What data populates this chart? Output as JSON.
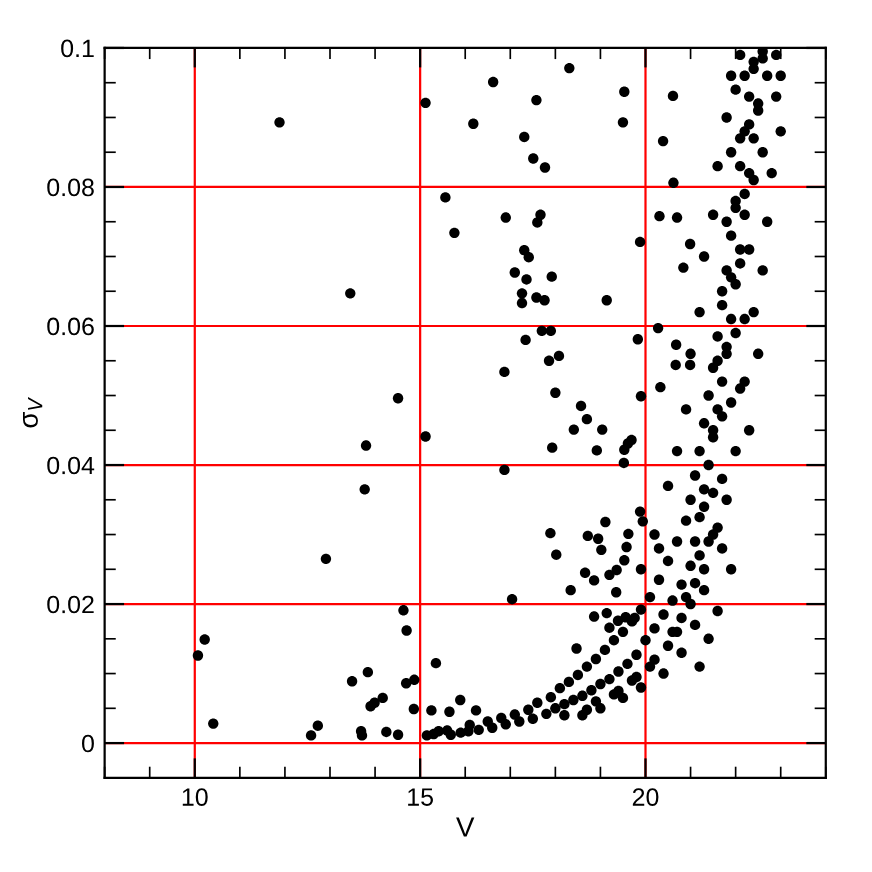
{
  "chart_data": {
    "type": "scatter",
    "xlabel": "V",
    "ylabel": "σ$_{V}$",
    "xlim": [
      8,
      24
    ],
    "ylim": [
      -0.005,
      0.1
    ],
    "xticks": [
      10,
      15,
      20
    ],
    "yticks": [
      0,
      0.02,
      0.04,
      0.06,
      0.08,
      0.1
    ],
    "grid": true,
    "marker": "circle",
    "series": [
      {
        "color": "#000000",
        "x": [
          11.88,
          15.12,
          16.18,
          15.56,
          15.76,
          13.45,
          14.51,
          15.12,
          13.8,
          13.77,
          12.91,
          14.63,
          14.7,
          10.22,
          10.07,
          15.35,
          13.84,
          13.49,
          14.87,
          14.69,
          14.17,
          13.99,
          13.9,
          14.86,
          15.25,
          15.89,
          15.65,
          10.41,
          12.73,
          12.58,
          13.69,
          13.71,
          14.25,
          14.51,
          15.15,
          15.41,
          15.68,
          16.07,
          16.24,
          16.62,
          18.31,
          17.58,
          19.53,
          20.61,
          19.5,
          17.31,
          17.51,
          17.77,
          20.39,
          20.62,
          16.9,
          17.6,
          17.67,
          20.31,
          20.7,
          19.88,
          20.99,
          17.31,
          17.41,
          17.1,
          17.36,
          17.92,
          20.84,
          17.26,
          17.26,
          17.58,
          17.76,
          19.14,
          17.7,
          17.9,
          17.34,
          19.83,
          20.28,
          20.68,
          16.87,
          17.86,
          18.08,
          18.0,
          19.9,
          20.33,
          20.67,
          20.99,
          18.57,
          18.7,
          18.41,
          19.04,
          17.93,
          18.92,
          16.87,
          19.53,
          19.61,
          19.69,
          19.52,
          17.89,
          18.02,
          18.72,
          18.95,
          19.11,
          19.02,
          18.34,
          18.66,
          17.04,
          18.86,
          19.2,
          19.36,
          19.53,
          19.58,
          19.62,
          19.88,
          19.94,
          18.86,
          19.14,
          19.2,
          19.39,
          19.56,
          19.76,
          19.35,
          18.47,
          15.3,
          15.6,
          15.9,
          16.1,
          16.3,
          16.5,
          16.6,
          16.8,
          16.9,
          17.1,
          17.2,
          17.4,
          17.5,
          17.6,
          17.8,
          17.9,
          18.0,
          18.1,
          18.2,
          18.3,
          18.4,
          18.5,
          18.6,
          18.7,
          18.8,
          18.9,
          19.0,
          19.1,
          19.2,
          19.3,
          19.4,
          19.5,
          19.6,
          19.7,
          19.8,
          19.9,
          20.0,
          20.1,
          20.2,
          20.3,
          20.4,
          20.5,
          20.6,
          20.7,
          20.8,
          20.9,
          21.0,
          21.0,
          21.1,
          21.1,
          21.2,
          21.2,
          21.3,
          21.3,
          21.4,
          21.4,
          21.5,
          21.5,
          21.6,
          21.6,
          21.7,
          21.7,
          21.8,
          21.8,
          21.9,
          21.9,
          22.0,
          22.0,
          22.1,
          22.1,
          22.2,
          22.2,
          22.3,
          22.3,
          22.4,
          22.4,
          22.5,
          22.6,
          22.7,
          22.9,
          22.1,
          21.8,
          22.0,
          22.3,
          22.2,
          22.5,
          22.4,
          22.6,
          22.7,
          22.8,
          23.0,
          22.9,
          21.5,
          21.7,
          21.3,
          21.9,
          21.6,
          21.1,
          21.4,
          20.8,
          20.4,
          19.9,
          19.5,
          19.0,
          18.6,
          21.2,
          20.5,
          20.7,
          20.9,
          21.0,
          21.2,
          21.3,
          21.5,
          21.6,
          21.8,
          21.9,
          20.2,
          19.9,
          20.3,
          23.0,
          22.6,
          21.5,
          21.7,
          21.9,
          22.1,
          21.6,
          21.8,
          22.0,
          22.2,
          21.7,
          21.9,
          22.1,
          22.3,
          21.8,
          22.0,
          22.2,
          22.4,
          21.9,
          22.1,
          22.3,
          22.5,
          22.0,
          22.2,
          22.4,
          22.6,
          21.3,
          21.5,
          21.7,
          21.2,
          21.4,
          21.6,
          20.9,
          21.1,
          21.3,
          20.6,
          20.8,
          21.0,
          20.2,
          20.5,
          20.7,
          19.8,
          20.1,
          19.4,
          19.7,
          18.9,
          19.3,
          18.2,
          18.7
        ],
        "values": [
          0.0893,
          0.0921,
          0.0891,
          0.0785,
          0.0734,
          0.0647,
          0.0496,
          0.0441,
          0.0428,
          0.0365,
          0.0265,
          0.0191,
          0.0162,
          0.0149,
          0.0126,
          0.0115,
          0.0102,
          0.0089,
          0.0091,
          0.0086,
          0.0065,
          0.0058,
          0.0053,
          0.0049,
          0.0047,
          0.0062,
          0.0045,
          0.0028,
          0.0025,
          0.0011,
          0.0017,
          0.0011,
          0.0016,
          0.0012,
          0.0011,
          0.0017,
          0.0012,
          0.0017,
          0.0047,
          0.0951,
          0.0971,
          0.0925,
          0.0937,
          0.0931,
          0.0893,
          0.0872,
          0.0841,
          0.0828,
          0.0866,
          0.0806,
          0.0756,
          0.0749,
          0.076,
          0.0758,
          0.0756,
          0.0721,
          0.0718,
          0.0709,
          0.0699,
          0.0677,
          0.0667,
          0.0671,
          0.0684,
          0.0647,
          0.0633,
          0.0641,
          0.0637,
          0.0637,
          0.0593,
          0.0593,
          0.058,
          0.0581,
          0.0597,
          0.0573,
          0.0534,
          0.055,
          0.0557,
          0.0504,
          0.0499,
          0.0512,
          0.0544,
          0.0544,
          0.0485,
          0.0466,
          0.0451,
          0.0451,
          0.0425,
          0.0421,
          0.0393,
          0.0422,
          0.0431,
          0.0436,
          0.0403,
          0.0302,
          0.0271,
          0.0298,
          0.0294,
          0.0318,
          0.0278,
          0.022,
          0.0245,
          0.0207,
          0.0234,
          0.0242,
          0.0249,
          0.0263,
          0.0282,
          0.0301,
          0.0333,
          0.0319,
          0.0182,
          0.0187,
          0.0166,
          0.0176,
          0.0181,
          0.018,
          0.0217,
          0.0136,
          0.0013,
          0.0018,
          0.0015,
          0.0026,
          0.0019,
          0.0031,
          0.0022,
          0.0036,
          0.0027,
          0.0041,
          0.0031,
          0.0048,
          0.0035,
          0.0058,
          0.0042,
          0.0066,
          0.005,
          0.0079,
          0.0056,
          0.0088,
          0.0062,
          0.0098,
          0.0068,
          0.011,
          0.0076,
          0.0121,
          0.0085,
          0.0134,
          0.0092,
          0.0148,
          0.0103,
          0.016,
          0.0114,
          0.0175,
          0.0127,
          0.0192,
          0.0148,
          0.021,
          0.0165,
          0.0235,
          0.0185,
          0.0262,
          0.0205,
          0.029,
          0.0228,
          0.032,
          0.0255,
          0.035,
          0.029,
          0.0385,
          0.0325,
          0.042,
          0.0365,
          0.046,
          0.04,
          0.05,
          0.044,
          0.054,
          0.048,
          0.0585,
          0.052,
          0.063,
          0.056,
          0.068,
          0.061,
          0.073,
          0.066,
          0.078,
          0.071,
          0.083,
          0.076,
          0.088,
          0.082,
          0.093,
          0.087,
          0.098,
          0.092,
          0.0995,
          0.096,
          0.099,
          0.099,
          0.035,
          0.042,
          0.045,
          0.052,
          0.056,
          0.062,
          0.068,
          0.075,
          0.082,
          0.088,
          0.093,
          0.03,
          0.028,
          0.022,
          0.025,
          0.019,
          0.017,
          0.015,
          0.013,
          0.01,
          0.008,
          0.0065,
          0.005,
          0.004,
          0.011,
          0.037,
          0.042,
          0.048,
          0.056,
          0.062,
          0.07,
          0.076,
          0.083,
          0.09,
          0.096,
          0.03,
          0.025,
          0.028,
          0.096,
          0.085,
          0.045,
          0.047,
          0.049,
          0.051,
          0.055,
          0.057,
          0.059,
          0.061,
          0.065,
          0.067,
          0.069,
          0.071,
          0.075,
          0.077,
          0.079,
          0.081,
          0.085,
          0.087,
          0.089,
          0.091,
          0.094,
          0.096,
          0.097,
          0.0985,
          0.034,
          0.036,
          0.038,
          0.027,
          0.029,
          0.031,
          0.021,
          0.023,
          0.025,
          0.016,
          0.018,
          0.02,
          0.012,
          0.014,
          0.016,
          0.0095,
          0.011,
          0.0075,
          0.009,
          0.006,
          0.007,
          0.004,
          0.0048
        ]
      }
    ]
  }
}
